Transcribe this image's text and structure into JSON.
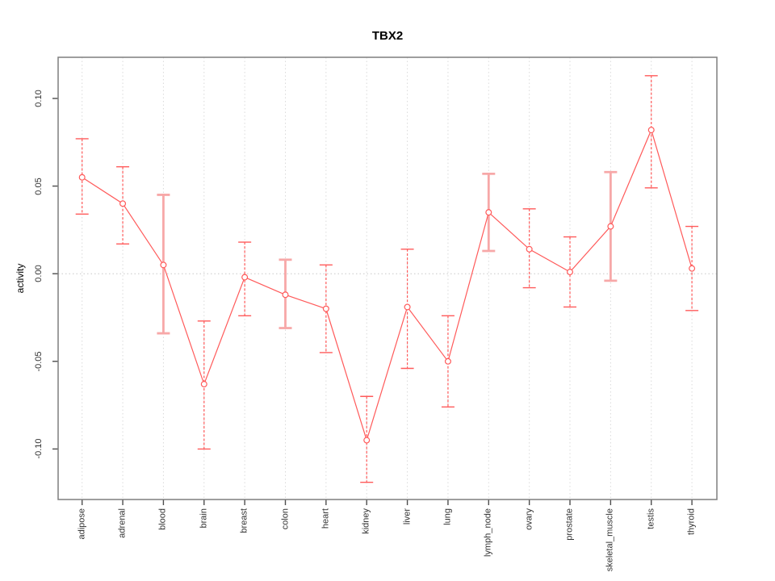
{
  "chart_data": {
    "type": "line",
    "title": "TBX2",
    "xlabel": "",
    "ylabel": "activity",
    "categories": [
      "adipose",
      "adrenal",
      "blood",
      "brain",
      "breast",
      "colon",
      "heart",
      "kidney",
      "liver",
      "lung",
      "lymph_node",
      "ovary",
      "prostate",
      "skeletal_muscle",
      "testis",
      "thyroid"
    ],
    "series": [
      {
        "name": "activity",
        "values": [
          0.055,
          0.04,
          0.005,
          -0.063,
          -0.002,
          -0.012,
          -0.02,
          -0.095,
          -0.019,
          -0.05,
          0.035,
          0.014,
          0.001,
          0.027,
          0.082,
          0.003
        ],
        "error_low": [
          0.034,
          0.017,
          -0.034,
          -0.1,
          -0.024,
          -0.031,
          -0.045,
          -0.119,
          -0.054,
          -0.076,
          0.013,
          -0.008,
          -0.019,
          -0.004,
          0.049,
          -0.021
        ],
        "error_high": [
          0.077,
          0.061,
          0.045,
          -0.027,
          0.018,
          0.008,
          0.005,
          -0.07,
          0.014,
          -0.024,
          0.057,
          0.037,
          0.021,
          0.058,
          0.113,
          0.027
        ]
      }
    ],
    "error_bar_style": [
      "dashed",
      "dashed",
      "solid_pink",
      "dashed",
      "dashed",
      "solid_pink",
      "dashed",
      "dashed",
      "dashed",
      "dashed",
      "solid_pink",
      "dashed",
      "dashed",
      "solid_pink",
      "dashed",
      "dashed"
    ],
    "yticks": [
      "-0.10",
      "-0.05",
      "0.00",
      "0.05",
      "0.10"
    ],
    "ytick_values": [
      -0.1,
      -0.05,
      0.0,
      0.05,
      0.1
    ],
    "ylim": [
      -0.129,
      0.124
    ],
    "legend": null,
    "grid": {
      "vertical_per_category": true,
      "zero_line": true,
      "style": "dotted"
    },
    "colors": {
      "line": "#ff5a5a",
      "point_fill": "#ffffff",
      "error_bar_pink": "#f7a8a8",
      "grid": "#dadada",
      "zero_line": "#c8c8c8",
      "axis_box": "#7f7f7f",
      "tick": "#4d4d4d",
      "tick_label": "#333333",
      "title": "#000000"
    }
  }
}
